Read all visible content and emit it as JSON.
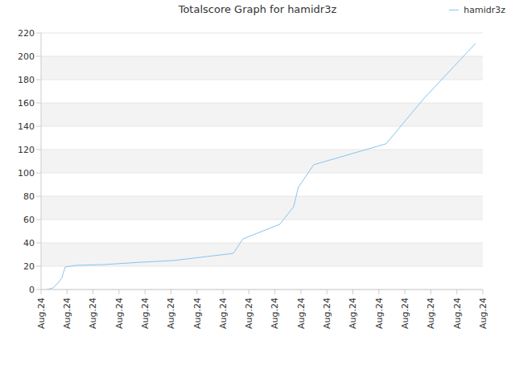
{
  "chart_data": {
    "type": "line",
    "title": "Totalscore Graph for hamidr3z",
    "x": [
      0.22,
      0.46,
      0.65,
      0.8,
      0.93,
      1.36,
      2.45,
      3.84,
      5.08,
      7.4,
      7.77,
      9.19,
      9.72,
      9.9,
      10.49,
      13.28,
      13.99,
      14.74,
      16.72
    ],
    "series": [
      {
        "name": "hamidr3z",
        "color": "#88c4f0",
        "values": [
          0,
          1.4,
          5.5,
          10,
          19.3,
          20.7,
          21.4,
          23.4,
          24.8,
          31,
          43.4,
          56,
          71,
          87.6,
          107,
          125,
          144,
          164,
          211
        ]
      }
    ],
    "xlim": [
      0,
      17
    ],
    "xticks": [
      {
        "value": 0,
        "label": "Aug.24"
      },
      {
        "value": 1,
        "label": "Aug.24"
      },
      {
        "value": 2,
        "label": "Aug.24"
      },
      {
        "value": 3,
        "label": "Aug.24"
      },
      {
        "value": 4,
        "label": "Aug.24"
      },
      {
        "value": 5,
        "label": "Aug.24"
      },
      {
        "value": 6,
        "label": "Aug.24"
      },
      {
        "value": 7,
        "label": "Aug.24"
      },
      {
        "value": 8,
        "label": "Aug.24"
      },
      {
        "value": 9,
        "label": "Aug.24"
      },
      {
        "value": 10,
        "label": "Aug.24"
      },
      {
        "value": 11,
        "label": "Aug.24"
      },
      {
        "value": 12,
        "label": "Aug.24"
      },
      {
        "value": 13,
        "label": "Aug.24"
      },
      {
        "value": 14,
        "label": "Aug.24"
      },
      {
        "value": 15,
        "label": "Aug.24"
      },
      {
        "value": 16,
        "label": "Aug.24"
      },
      {
        "value": 17,
        "label": "Aug.24"
      }
    ],
    "ylim": [
      0,
      220
    ],
    "yticks": [
      0,
      20,
      40,
      60,
      80,
      100,
      120,
      140,
      160,
      180,
      200,
      220
    ],
    "grid": true,
    "legend": "upper right"
  }
}
